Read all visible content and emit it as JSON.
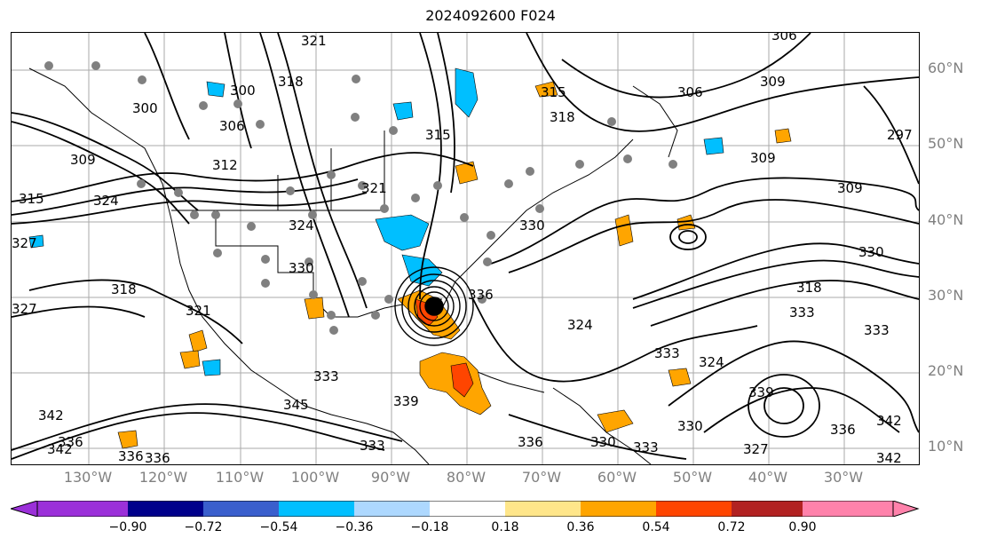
{
  "title": "2024092600 F024",
  "lat_labels": [
    "60°N",
    "50°N",
    "40°N",
    "30°N",
    "20°N",
    "10°N"
  ],
  "lon_labels": [
    "130°W",
    "120°W",
    "110°W",
    "100°W",
    "90°W",
    "80°W",
    "70°W",
    "60°W",
    "50°W",
    "40°W",
    "30°W"
  ],
  "colorbar": {
    "ticks": [
      "−0.90",
      "−0.72",
      "−0.54",
      "−0.36",
      "−0.18",
      "0.18",
      "0.36",
      "0.54",
      "0.72",
      "0.90"
    ],
    "colors": [
      "#9b30d9",
      "#00008b",
      "#3a5fcd",
      "#00bfff",
      "#add8ff",
      "#ffffff",
      "#ffe68a",
      "#ffa500",
      "#ff4500",
      "#b22222",
      "#ff82ab"
    ]
  },
  "contour_labels": [
    "321",
    "300",
    "306",
    "300",
    "309",
    "312",
    "324",
    "315",
    "327",
    "318",
    "327",
    "321",
    "315",
    "318",
    "309",
    "318",
    "315",
    "321",
    "324",
    "330",
    "306",
    "297",
    "306",
    "309",
    "309",
    "330",
    "330",
    "333",
    "318",
    "324",
    "336",
    "330",
    "333",
    "324",
    "339",
    "333",
    "342",
    "345",
    "336",
    "333",
    "339",
    "342",
    "330",
    "336",
    "342",
    "327",
    "336",
    "342",
    "336",
    "333",
    "336",
    "333"
  ]
}
